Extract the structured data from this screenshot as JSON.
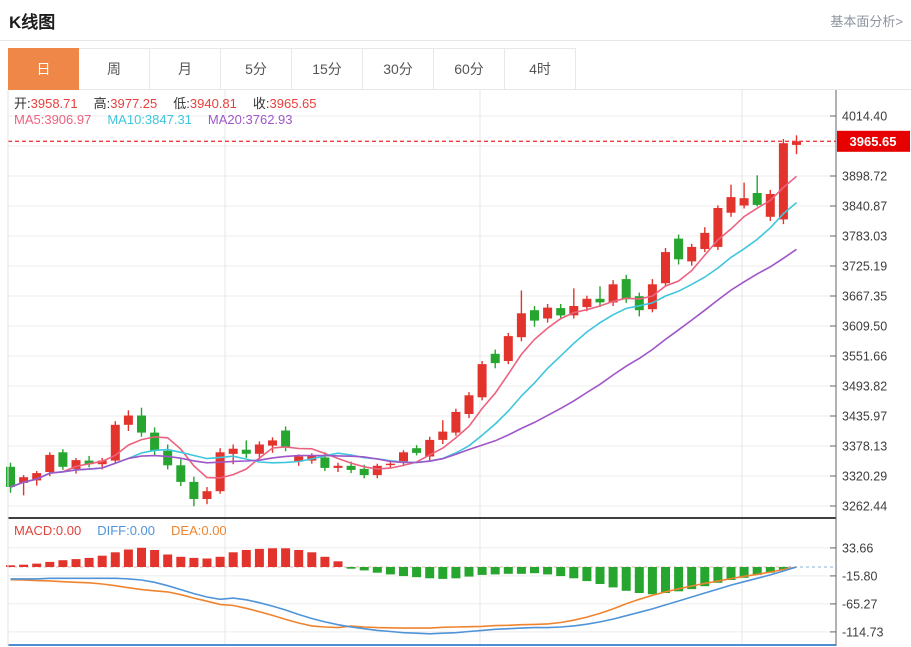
{
  "header": {
    "title": "K线图",
    "link": "基本面分析>"
  },
  "tabs": {
    "items": [
      "日",
      "周",
      "月",
      "5分",
      "15分",
      "30分",
      "60分",
      "4时"
    ],
    "names": [
      "day",
      "week",
      "month",
      "5min",
      "15min",
      "30min",
      "60min",
      "4hour"
    ],
    "active_index": 0
  },
  "legend": {
    "ohlc": [
      {
        "label": "开:",
        "value": "3958.71"
      },
      {
        "label": "高:",
        "value": "3977.25"
      },
      {
        "label": "低:",
        "value": "3940.81"
      },
      {
        "label": "收:",
        "value": "3965.65"
      }
    ],
    "ma": [
      {
        "label": "MA5:",
        "value": "3906.97",
        "color": "#ec6280"
      },
      {
        "label": "MA10:",
        "value": "3847.31",
        "color": "#3fc6dc"
      },
      {
        "label": "MA20:",
        "value": "3762.93",
        "color": "#9e56c9"
      }
    ],
    "macd": [
      {
        "label": "MACD:",
        "value": "0.00",
        "color": "#e0423c"
      },
      {
        "label": "DIFF:",
        "value": "0.00",
        "color": "#4f94d9"
      },
      {
        "label": "DEA:",
        "value": "0.00",
        "color": "#ef8430"
      }
    ]
  },
  "colors": {
    "up": "#e2342c",
    "down": "#26a52f",
    "ma5": "#ec6280",
    "ma10": "#3fc6dc",
    "ma20": "#9e56c9",
    "diff": "#4f94d9",
    "dea": "#ef8430",
    "tab_active_bg": "#ee8747",
    "value_red": "#e8403c",
    "price_tag_bg": "#e60000",
    "price_line": "#f03c3c",
    "axis_label": "#3d3d3d"
  },
  "chart_data": {
    "type": "candlestick",
    "title": "K线图",
    "legend_position": "top-left",
    "grid": true,
    "price_axis": {
      "side": "right",
      "ticks": [
        "4014.40",
        "3898.72",
        "3840.87",
        "3783.03",
        "3725.19",
        "3667.35",
        "3609.50",
        "3551.66",
        "3493.82",
        "3435.97",
        "3378.13",
        "3320.29",
        "3262.44"
      ],
      "current_price": "3965.65"
    },
    "ma_periods": [
      5,
      10,
      20
    ],
    "candles_format": [
      "open",
      "high",
      "low",
      "close"
    ],
    "candles": [
      [
        3338,
        3346,
        3288,
        3299
      ],
      [
        3307,
        3322,
        3283,
        3318
      ],
      [
        3312,
        3330,
        3302,
        3326
      ],
      [
        3328,
        3366,
        3320,
        3361
      ],
      [
        3366,
        3372,
        3332,
        3338
      ],
      [
        3334,
        3355,
        3325,
        3351
      ],
      [
        3350,
        3359,
        3337,
        3343
      ],
      [
        3343,
        3355,
        3333,
        3350
      ],
      [
        3350,
        3426,
        3344,
        3419
      ],
      [
        3419,
        3447,
        3407,
        3437
      ],
      [
        3437,
        3452,
        3396,
        3404
      ],
      [
        3404,
        3414,
        3361,
        3369
      ],
      [
        3369,
        3381,
        3333,
        3341
      ],
      [
        3341,
        3353,
        3301,
        3309
      ],
      [
        3309,
        3319,
        3262,
        3276
      ],
      [
        3276,
        3299,
        3266,
        3291
      ],
      [
        3291,
        3374,
        3286,
        3366
      ],
      [
        3363,
        3381,
        3343,
        3373
      ],
      [
        3371,
        3389,
        3355,
        3363
      ],
      [
        3363,
        3387,
        3353,
        3381
      ],
      [
        3379,
        3395,
        3365,
        3389
      ],
      [
        3408,
        3416,
        3368,
        3376
      ],
      [
        3348,
        3362,
        3340,
        3358
      ],
      [
        3350,
        3364,
        3344,
        3360
      ],
      [
        3356,
        3366,
        3330,
        3336
      ],
      [
        3336,
        3346,
        3328,
        3340
      ],
      [
        3340,
        3348,
        3326,
        3332
      ],
      [
        3334,
        3342,
        3316,
        3322
      ],
      [
        3322,
        3344,
        3316,
        3340
      ],
      [
        3342,
        3350,
        3336,
        3344
      ],
      [
        3346,
        3370,
        3340,
        3366
      ],
      [
        3374,
        3380,
        3360,
        3365
      ],
      [
        3358,
        3396,
        3350,
        3390
      ],
      [
        3390,
        3428,
        3382,
        3406
      ],
      [
        3404,
        3450,
        3398,
        3444
      ],
      [
        3440,
        3482,
        3432,
        3476
      ],
      [
        3472,
        3542,
        3466,
        3536
      ],
      [
        3556,
        3564,
        3528,
        3538
      ],
      [
        3542,
        3596,
        3536,
        3590
      ],
      [
        3588,
        3678,
        3580,
        3634
      ],
      [
        3640,
        3648,
        3608,
        3620
      ],
      [
        3624,
        3652,
        3616,
        3645
      ],
      [
        3644,
        3652,
        3622,
        3630
      ],
      [
        3630,
        3682,
        3624,
        3648
      ],
      [
        3646,
        3668,
        3638,
        3662
      ],
      [
        3662,
        3686,
        3646,
        3655
      ],
      [
        3655,
        3698,
        3648,
        3690
      ],
      [
        3700,
        3708,
        3654,
        3661
      ],
      [
        3667,
        3674,
        3628,
        3640
      ],
      [
        3642,
        3700,
        3636,
        3690
      ],
      [
        3692,
        3760,
        3686,
        3752
      ],
      [
        3778,
        3786,
        3728,
        3738
      ],
      [
        3734,
        3768,
        3726,
        3762
      ],
      [
        3758,
        3800,
        3752,
        3789
      ],
      [
        3762,
        3842,
        3756,
        3837
      ],
      [
        3828,
        3882,
        3820,
        3858
      ],
      [
        3842,
        3886,
        3836,
        3856
      ],
      [
        3866,
        3900,
        3840,
        3843
      ],
      [
        3820,
        3872,
        3812,
        3864
      ],
      [
        3815,
        3970,
        3806,
        3962
      ],
      [
        3958.71,
        3977.25,
        3940.81,
        3965.65
      ]
    ],
    "macd": {
      "ticks": [
        "33.66",
        "-15.80",
        "-65.27",
        "-114.73"
      ],
      "bar": [
        3,
        4,
        6,
        9,
        12,
        14,
        16,
        20,
        26,
        31,
        34,
        30,
        22,
        18,
        16,
        15,
        18,
        26,
        30,
        32,
        33,
        33,
        30,
        26,
        18,
        10,
        -3,
        -6,
        -10,
        -13,
        -16,
        -18,
        -20,
        -21,
        -20,
        -17,
        -14,
        -13,
        -12,
        -12,
        -11,
        -13,
        -16,
        -20,
        -25,
        -30,
        -36,
        -42,
        -46,
        -48,
        -46,
        -43,
        -39,
        -34,
        -28,
        -23,
        -19,
        -14,
        -10,
        -5,
        0
      ],
      "diff": [
        -21,
        -21,
        -21,
        -20,
        -20,
        -20,
        -20,
        -20,
        -20,
        -21,
        -23,
        -27,
        -33,
        -40,
        -47,
        -53,
        -57,
        -55,
        -58,
        -63,
        -69,
        -76,
        -84,
        -91,
        -97,
        -102,
        -106,
        -109,
        -112,
        -114,
        -116,
        -117,
        -118,
        -117,
        -116,
        -114,
        -112,
        -110,
        -109,
        -108,
        -107,
        -107,
        -106,
        -104,
        -101,
        -97,
        -92,
        -86,
        -80,
        -74,
        -67,
        -60,
        -53,
        -46,
        -39,
        -32,
        -26,
        -20,
        -14,
        -7,
        0
      ],
      "dea": [
        -22.5,
        -23,
        -24,
        -24.5,
        -26,
        -27,
        -28,
        -30,
        -33,
        -36.5,
        -40,
        -42,
        -44,
        -49,
        -55,
        -60.5,
        -66,
        -68,
        -73,
        -79,
        -85.5,
        -92.5,
        -99,
        -104,
        -106,
        -107,
        -104.5,
        -106,
        -107,
        -107.5,
        -108,
        -108,
        -108,
        -106.5,
        -106,
        -105.5,
        -105,
        -103.5,
        -103,
        -102,
        -101.5,
        -100.5,
        -98,
        -94,
        -88.5,
        -82,
        -74,
        -65,
        -57,
        -50,
        -44,
        -38.5,
        -33.5,
        -29,
        -25,
        -20.5,
        -16.5,
        -13,
        -9,
        -4.5,
        0
      ]
    }
  }
}
